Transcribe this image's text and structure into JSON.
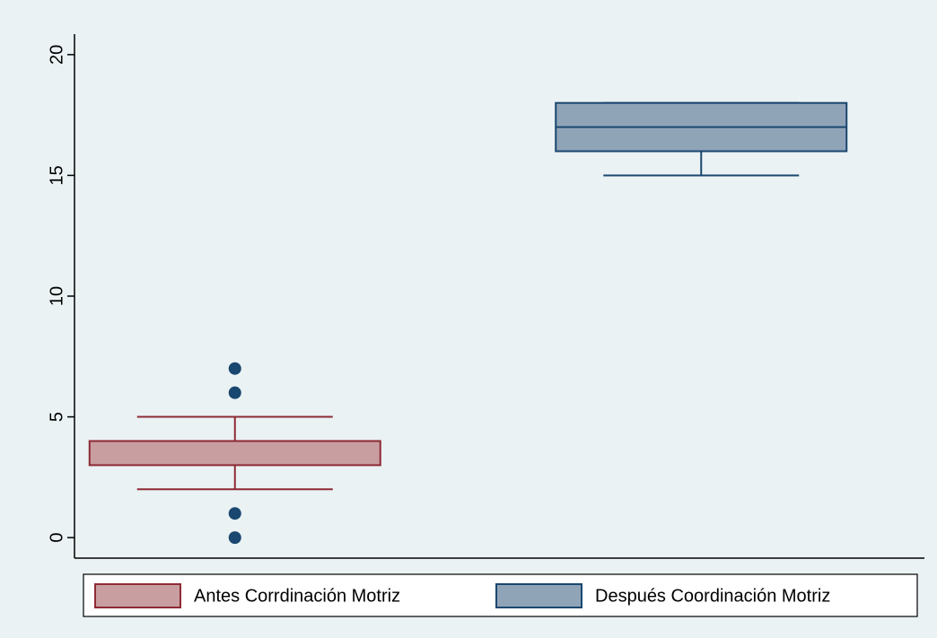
{
  "chart_data": {
    "type": "box",
    "series": [
      {
        "name": "Antes Corrdinación Motriz",
        "color": "#c89ea1",
        "stroke": "#8e2a34",
        "q1": 3,
        "median": 4,
        "q3": 4,
        "whisker_low": 2,
        "whisker_high": 5,
        "outliers": [
          0,
          1,
          6,
          7
        ]
      },
      {
        "name": "Después Coordinación Motriz",
        "color": "#90a4b8",
        "stroke": "#1a476f",
        "q1": 16,
        "median": 17,
        "q3": 18,
        "whisker_low": 15,
        "whisker_high": 18,
        "outliers": []
      }
    ],
    "outlier_color": "#1a476f",
    "ylim": [
      -0.85,
      20.85
    ],
    "yticks": [
      0,
      5,
      10,
      15,
      20
    ],
    "grid": false,
    "legend": "bottom"
  }
}
